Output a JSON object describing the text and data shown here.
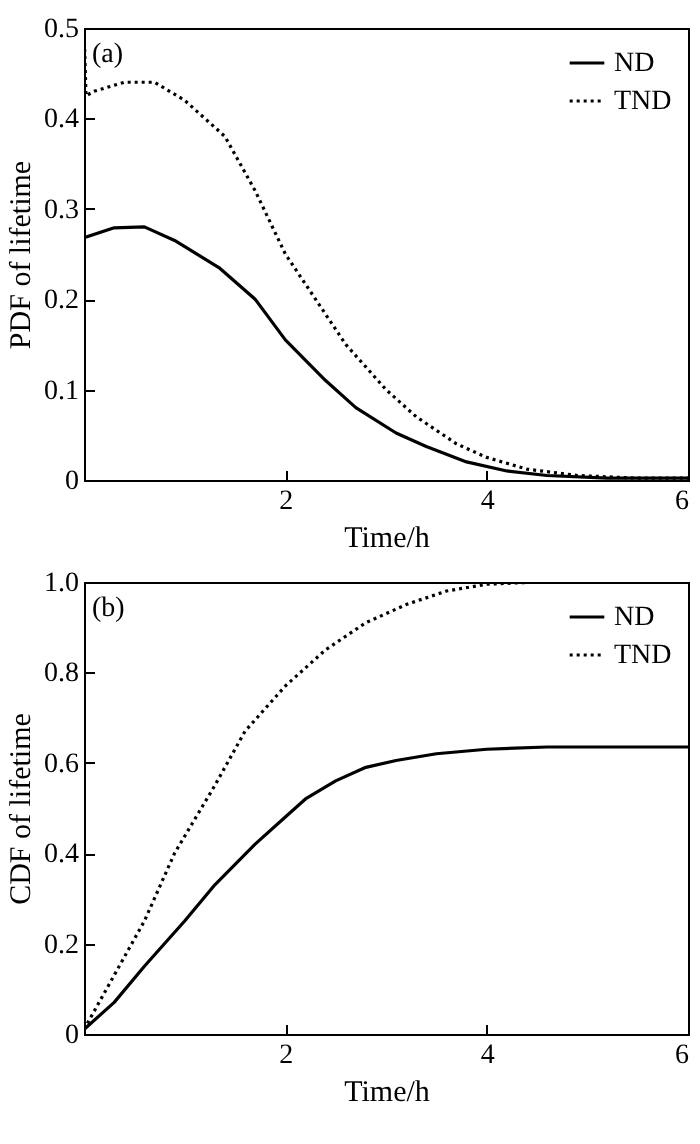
{
  "chart_data": [
    {
      "type": "line",
      "xlabel": "Time/h",
      "ylabel": "PDF of lifetime",
      "annotations": [
        "(a)"
      ],
      "legend": "top right",
      "xlim": [
        0,
        6
      ],
      "xticks": [
        2,
        4,
        6
      ],
      "ylim": [
        0,
        0.5
      ],
      "yticks": [
        0,
        0.1,
        0.2,
        0.3,
        0.4,
        0.5
      ],
      "series": [
        {
          "name": "ND",
          "color": "#000000",
          "line_style": "solid",
          "x": [
            0,
            0.3,
            0.6,
            0.9,
            1.34,
            1.7,
            2.0,
            2.4,
            2.7,
            3.1,
            3.4,
            3.8,
            4.2,
            4.6,
            5.2,
            6
          ],
          "values": [
            0.268,
            0.279,
            0.28,
            0.265,
            0.235,
            0.2,
            0.155,
            0.11,
            0.08,
            0.052,
            0.037,
            0.02,
            0.01,
            0.005,
            0.002,
            0.002
          ]
        },
        {
          "name": "TND",
          "color": "#000000",
          "line_style": "dotted",
          "x": [
            0,
            0.02,
            0.1,
            0.4,
            0.7,
            1.0,
            1.4,
            1.7,
            2.0,
            2.3,
            2.6,
            3.0,
            3.3,
            3.7,
            4.0,
            4.4,
            4.9,
            5.5,
            6
          ],
          "values": [
            0.5,
            0.425,
            0.43,
            0.44,
            0.44,
            0.42,
            0.38,
            0.32,
            0.25,
            0.2,
            0.15,
            0.1,
            0.07,
            0.04,
            0.025,
            0.012,
            0.005,
            0.002,
            0.002
          ]
        }
      ]
    },
    {
      "type": "line",
      "xlabel": "Time/h",
      "ylabel": "CDF of lifetime",
      "annotations": [
        "(b)"
      ],
      "legend": "top right",
      "xlim": [
        0,
        6
      ],
      "xticks": [
        2,
        4,
        6
      ],
      "ylim": [
        0,
        1
      ],
      "yticks": [
        0,
        0.2,
        0.4,
        0.6,
        0.8,
        {
          "value": 1,
          "label": "1.0"
        }
      ],
      "series": [
        {
          "name": "ND",
          "color": "#000000",
          "line_style": "solid",
          "x": [
            0,
            0.3,
            0.6,
            1.0,
            1.3,
            1.7,
            2.0,
            2.2,
            2.5,
            2.8,
            3.1,
            3.5,
            4.0,
            4.6,
            6
          ],
          "values": [
            0.01,
            0.07,
            0.15,
            0.25,
            0.33,
            0.42,
            0.48,
            0.52,
            0.56,
            0.59,
            0.605,
            0.62,
            0.63,
            0.635,
            0.635
          ]
        },
        {
          "name": "TND",
          "color": "#000000",
          "line_style": "dotted",
          "x": [
            0,
            0.3,
            0.6,
            0.9,
            1.3,
            1.6,
            2.0,
            2.4,
            2.8,
            3.2,
            3.6,
            4.0,
            4.5,
            6
          ],
          "values": [
            0.01,
            0.13,
            0.25,
            0.4,
            0.55,
            0.67,
            0.77,
            0.85,
            0.91,
            0.95,
            0.98,
            0.995,
            1.0,
            1.0
          ]
        }
      ]
    }
  ]
}
